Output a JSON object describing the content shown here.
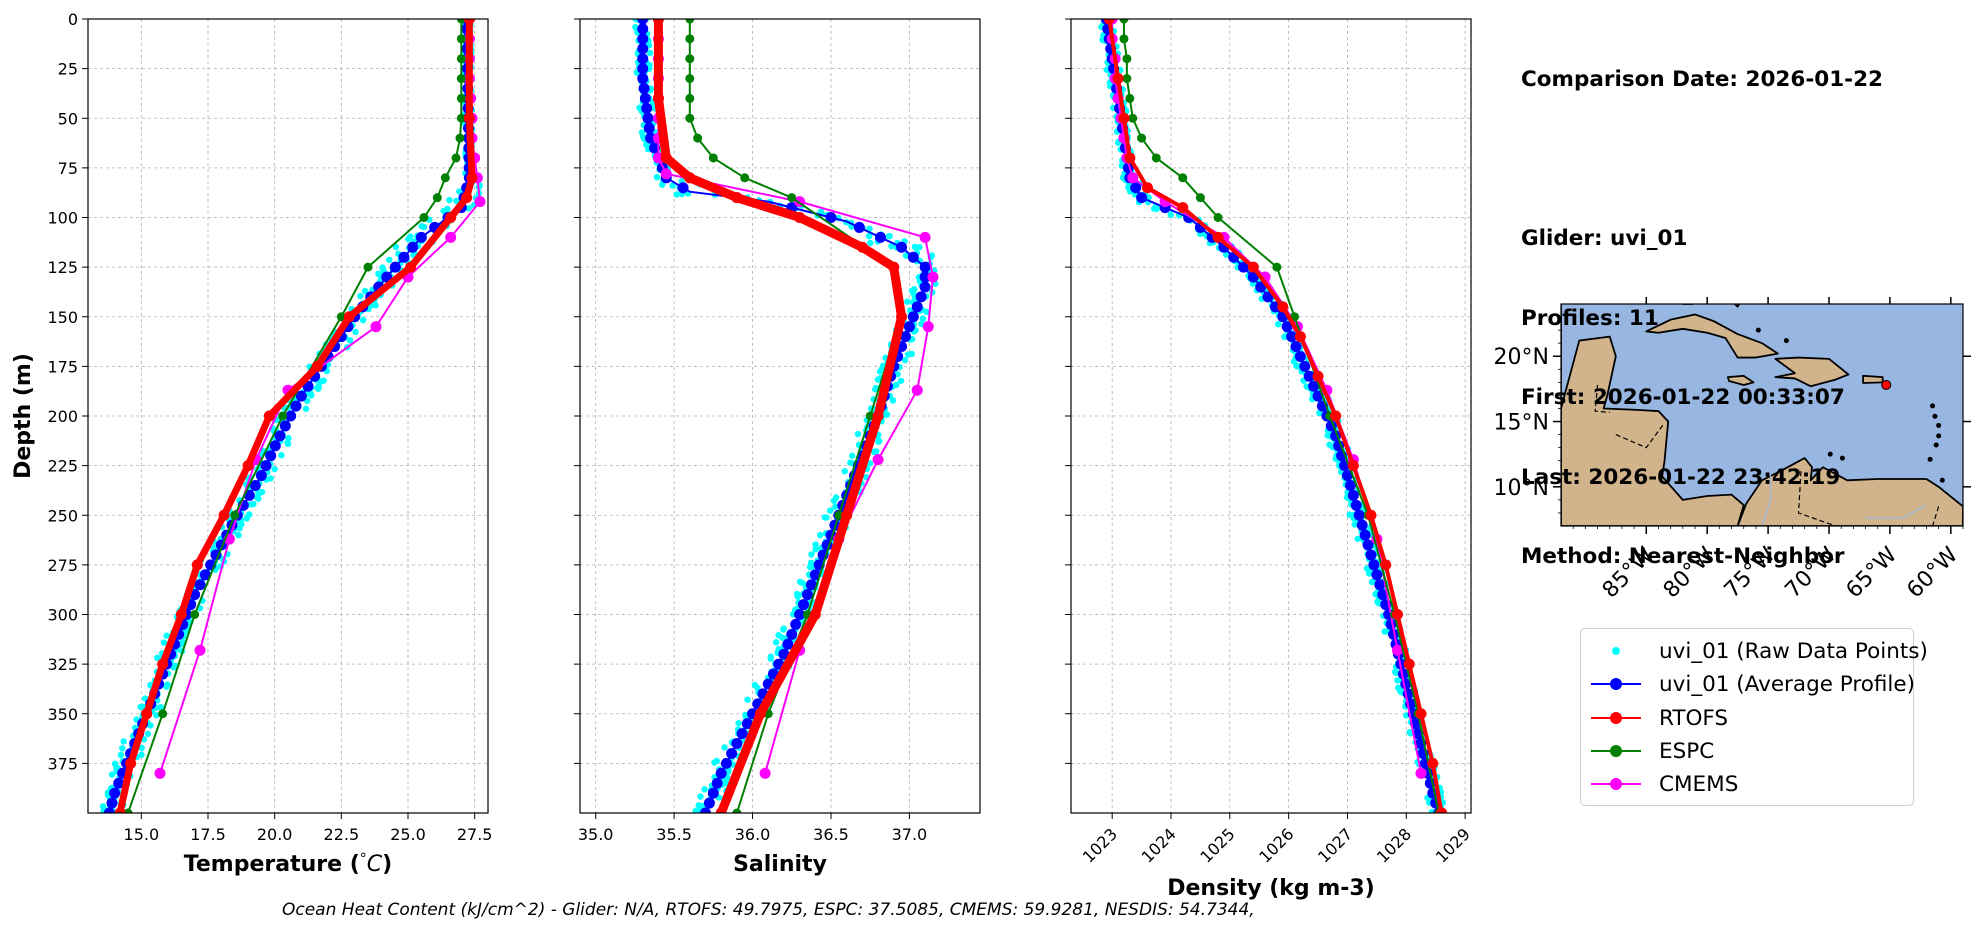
{
  "info": {
    "comparison_date": "Comparison Date: 2026-01-22",
    "glider": "Glider: uvi_01",
    "profiles": "Profiles: 11",
    "first": "First: 2026-01-22 00:33:07",
    "last": "Last: 2026-01-22 23:42:19",
    "method": "Method: Nearest-Neighbor"
  },
  "footer": {
    "ohc_text": "Ocean Heat Content (kJ/cm^2) - Glider: N/A,  RTOFS: 49.7975,  ESPC: 37.5085,  CMEMS: 59.9281,  NESDIS: 54.7344,"
  },
  "legend": [
    {
      "label": "uvi_01 (Raw Data Points)",
      "color": "#00ffff",
      "style": "dots"
    },
    {
      "label": "uvi_01 (Average Profile)",
      "color": "#0000ff",
      "style": "line-marker"
    },
    {
      "label": "RTOFS",
      "color": "#ff0000",
      "style": "line-marker"
    },
    {
      "label": "ESPC",
      "color": "#008000",
      "style": "line-marker"
    },
    {
      "label": "CMEMS",
      "color": "#ff00ff",
      "style": "line-marker"
    }
  ],
  "map": {
    "lon_range": [
      -92,
      -59
    ],
    "lat_range": [
      7,
      24
    ],
    "lon_ticks": [
      "85°W",
      "80°W",
      "75°W",
      "70°W",
      "65°W",
      "60°W"
    ],
    "lat_ticks": [
      "20°N",
      "15°N",
      "10°N"
    ],
    "ocean_color": "#97b6e1",
    "land_color": "#d2b48c",
    "glider_location": {
      "lon": -65.3,
      "lat": 17.8
    }
  },
  "chart_data": [
    {
      "type": "line",
      "xlabel": "Temperature (°C)",
      "ylabel": "Depth (m)",
      "xlim": [
        13.0,
        28.0
      ],
      "ylim": [
        400,
        0
      ],
      "xticks": [
        "15.0",
        "17.5",
        "20.0",
        "22.5",
        "25.0",
        "27.5"
      ],
      "yticks": [
        "0",
        "25",
        "50",
        "75",
        "100",
        "125",
        "150",
        "175",
        "200",
        "225",
        "250",
        "275",
        "300",
        "325",
        "350",
        "375"
      ],
      "grid": true,
      "series": [
        {
          "name": "uvi_01 (Average Profile)",
          "color": "#0000ff",
          "points": [
            [
              27.2,
              0
            ],
            [
              27.25,
              40
            ],
            [
              27.3,
              80
            ],
            [
              27.0,
              95
            ],
            [
              25.5,
              110
            ],
            [
              24.2,
              130
            ],
            [
              23.0,
              150
            ],
            [
              22.0,
              170
            ],
            [
              21.0,
              190
            ],
            [
              20.2,
              210
            ],
            [
              19.5,
              230
            ],
            [
              18.6,
              250
            ],
            [
              17.8,
              270
            ],
            [
              17.0,
              290
            ],
            [
              16.4,
              310
            ],
            [
              15.8,
              330
            ],
            [
              15.2,
              350
            ],
            [
              14.6,
              370
            ],
            [
              14.0,
              390
            ],
            [
              13.8,
              400
            ]
          ]
        },
        {
          "name": "RTOFS",
          "color": "#ff0000",
          "width": 7,
          "points": [
            [
              27.3,
              0
            ],
            [
              27.3,
              50
            ],
            [
              27.4,
              80
            ],
            [
              27.2,
              90
            ],
            [
              26.6,
              100
            ],
            [
              25.1,
              125
            ],
            [
              22.8,
              150
            ],
            [
              21.6,
              175
            ],
            [
              19.8,
              200
            ],
            [
              19.0,
              225
            ],
            [
              18.1,
              250
            ],
            [
              17.1,
              275
            ],
            [
              16.5,
              300
            ],
            [
              15.8,
              325
            ],
            [
              15.2,
              350
            ],
            [
              14.6,
              375
            ],
            [
              14.2,
              400
            ]
          ]
        },
        {
          "name": "ESPC",
          "color": "#008000",
          "points": [
            [
              27.0,
              0
            ],
            [
              27.0,
              10
            ],
            [
              27.0,
              20
            ],
            [
              27.0,
              30
            ],
            [
              27.0,
              40
            ],
            [
              27.0,
              50
            ],
            [
              26.95,
              60
            ],
            [
              26.8,
              70
            ],
            [
              26.4,
              80
            ],
            [
              26.1,
              90
            ],
            [
              25.6,
              100
            ],
            [
              23.5,
              125
            ],
            [
              22.5,
              150
            ],
            [
              20.3,
              200
            ],
            [
              18.5,
              250
            ],
            [
              17.0,
              300
            ],
            [
              15.8,
              350
            ],
            [
              14.5,
              400
            ]
          ]
        },
        {
          "name": "CMEMS",
          "color": "#ff00ff",
          "points": [
            [
              27.3,
              0
            ],
            [
              27.3,
              10
            ],
            [
              27.3,
              20
            ],
            [
              27.3,
              30
            ],
            [
              27.35,
              40
            ],
            [
              27.4,
              50
            ],
            [
              27.4,
              60
            ],
            [
              27.5,
              70
            ],
            [
              27.6,
              80
            ],
            [
              27.7,
              92
            ],
            [
              26.6,
              110
            ],
            [
              25.0,
              130
            ],
            [
              23.8,
              155
            ],
            [
              20.5,
              187
            ],
            [
              19.3,
              222
            ],
            [
              18.3,
              262
            ],
            [
              17.2,
              318
            ],
            [
              15.7,
              380
            ]
          ]
        }
      ]
    },
    {
      "type": "line",
      "xlabel": "Salinity",
      "xlim": [
        34.9,
        37.45
      ],
      "ylim": [
        400,
        0
      ],
      "xticks": [
        "35.0",
        "35.5",
        "36.0",
        "36.5",
        "37.0"
      ],
      "grid": true,
      "series": [
        {
          "name": "uvi_01 (Average Profile)",
          "color": "#0000ff",
          "points": [
            [
              35.3,
              0
            ],
            [
              35.3,
              30
            ],
            [
              35.35,
              60
            ],
            [
              35.45,
              80
            ],
            [
              35.6,
              87
            ],
            [
              36.1,
              92
            ],
            [
              36.6,
              102
            ],
            [
              36.95,
              115
            ],
            [
              37.1,
              125
            ],
            [
              37.1,
              135
            ],
            [
              37.0,
              155
            ],
            [
              36.9,
              175
            ],
            [
              36.8,
              200
            ],
            [
              36.65,
              230
            ],
            [
              36.5,
              260
            ],
            [
              36.35,
              290
            ],
            [
              36.2,
              320
            ],
            [
              36.0,
              350
            ],
            [
              35.8,
              380
            ],
            [
              35.7,
              400
            ]
          ]
        },
        {
          "name": "RTOFS",
          "color": "#ff0000",
          "width": 9,
          "points": [
            [
              35.4,
              0
            ],
            [
              35.4,
              40
            ],
            [
              35.45,
              70
            ],
            [
              35.6,
              80
            ],
            [
              35.9,
              90
            ],
            [
              36.3,
              100
            ],
            [
              36.7,
              115
            ],
            [
              36.9,
              125
            ],
            [
              36.95,
              150
            ],
            [
              36.8,
              200
            ],
            [
              36.6,
              250
            ],
            [
              36.4,
              300
            ],
            [
              36.05,
              350
            ],
            [
              35.8,
              400
            ]
          ]
        },
        {
          "name": "ESPC",
          "color": "#008000",
          "points": [
            [
              35.6,
              0
            ],
            [
              35.6,
              10
            ],
            [
              35.6,
              20
            ],
            [
              35.6,
              30
            ],
            [
              35.6,
              40
            ],
            [
              35.6,
              50
            ],
            [
              35.65,
              60
            ],
            [
              35.75,
              70
            ],
            [
              35.95,
              80
            ],
            [
              36.25,
              90
            ],
            [
              36.9,
              125
            ],
            [
              36.95,
              150
            ],
            [
              36.75,
              200
            ],
            [
              36.55,
              250
            ],
            [
              36.35,
              300
            ],
            [
              36.1,
              350
            ],
            [
              35.9,
              400
            ]
          ]
        },
        {
          "name": "CMEMS",
          "color": "#ff00ff",
          "points": [
            [
              35.4,
              0
            ],
            [
              35.4,
              10
            ],
            [
              35.4,
              20
            ],
            [
              35.4,
              30
            ],
            [
              35.4,
              40
            ],
            [
              35.4,
              50
            ],
            [
              35.4,
              60
            ],
            [
              35.4,
              70
            ],
            [
              35.45,
              78
            ],
            [
              36.3,
              92
            ],
            [
              37.1,
              110
            ],
            [
              37.15,
              130
            ],
            [
              37.12,
              155
            ],
            [
              37.05,
              187
            ],
            [
              36.8,
              222
            ],
            [
              36.55,
              262
            ],
            [
              36.3,
              318
            ],
            [
              36.08,
              380
            ]
          ]
        }
      ]
    },
    {
      "type": "line",
      "xlabel": "Density (kg m-3)",
      "xlim": [
        1022.3,
        1029.1
      ],
      "ylim": [
        400,
        0
      ],
      "xticks": [
        "1023",
        "1024",
        "1025",
        "1026",
        "1027",
        "1028",
        "1029"
      ],
      "grid": true,
      "series": [
        {
          "name": "uvi_01 (Average Profile)",
          "color": "#0000ff",
          "points": [
            [
              1022.9,
              0
            ],
            [
              1023.0,
              20
            ],
            [
              1023.1,
              40
            ],
            [
              1023.2,
              60
            ],
            [
              1023.3,
              80
            ],
            [
              1023.5,
              90
            ],
            [
              1024.3,
              100
            ],
            [
              1024.9,
              115
            ],
            [
              1025.4,
              130
            ],
            [
              1025.9,
              150
            ],
            [
              1026.2,
              170
            ],
            [
              1026.5,
              190
            ],
            [
              1026.8,
              210
            ],
            [
              1027.1,
              240
            ],
            [
              1027.4,
              270
            ],
            [
              1027.7,
              300
            ],
            [
              1027.95,
              330
            ],
            [
              1028.2,
              360
            ],
            [
              1028.45,
              390
            ],
            [
              1028.55,
              400
            ]
          ]
        },
        {
          "name": "RTOFS",
          "color": "#ff0000",
          "width": 4,
          "points": [
            [
              1022.95,
              0
            ],
            [
              1023.1,
              30
            ],
            [
              1023.2,
              50
            ],
            [
              1023.3,
              70
            ],
            [
              1023.6,
              85
            ],
            [
              1024.2,
              95
            ],
            [
              1024.8,
              110
            ],
            [
              1025.4,
              125
            ],
            [
              1025.9,
              145
            ],
            [
              1026.2,
              160
            ],
            [
              1026.5,
              180
            ],
            [
              1026.8,
              200
            ],
            [
              1027.1,
              225
            ],
            [
              1027.4,
              250
            ],
            [
              1027.65,
              275
            ],
            [
              1027.85,
              300
            ],
            [
              1028.05,
              325
            ],
            [
              1028.25,
              350
            ],
            [
              1028.45,
              375
            ],
            [
              1028.6,
              400
            ]
          ]
        },
        {
          "name": "ESPC",
          "color": "#008000",
          "points": [
            [
              1023.2,
              0
            ],
            [
              1023.2,
              10
            ],
            [
              1023.25,
              20
            ],
            [
              1023.25,
              30
            ],
            [
              1023.3,
              40
            ],
            [
              1023.35,
              50
            ],
            [
              1023.5,
              60
            ],
            [
              1023.75,
              70
            ],
            [
              1024.2,
              80
            ],
            [
              1024.5,
              90
            ],
            [
              1024.8,
              100
            ],
            [
              1025.8,
              125
            ],
            [
              1026.1,
              150
            ],
            [
              1026.7,
              200
            ],
            [
              1027.35,
              250
            ],
            [
              1027.8,
              300
            ],
            [
              1028.2,
              350
            ],
            [
              1028.55,
              400
            ]
          ]
        },
        {
          "name": "CMEMS",
          "color": "#ff00ff",
          "points": [
            [
              1023.0,
              0
            ],
            [
              1023.0,
              10
            ],
            [
              1023.05,
              20
            ],
            [
              1023.05,
              30
            ],
            [
              1023.1,
              40
            ],
            [
              1023.15,
              50
            ],
            [
              1023.2,
              60
            ],
            [
              1023.25,
              70
            ],
            [
              1023.35,
              80
            ],
            [
              1023.9,
              92
            ],
            [
              1024.9,
              110
            ],
            [
              1025.6,
              130
            ],
            [
              1026.15,
              155
            ],
            [
              1026.65,
              187
            ],
            [
              1027.1,
              222
            ],
            [
              1027.5,
              262
            ],
            [
              1027.85,
              318
            ],
            [
              1028.25,
              380
            ]
          ]
        }
      ]
    }
  ]
}
